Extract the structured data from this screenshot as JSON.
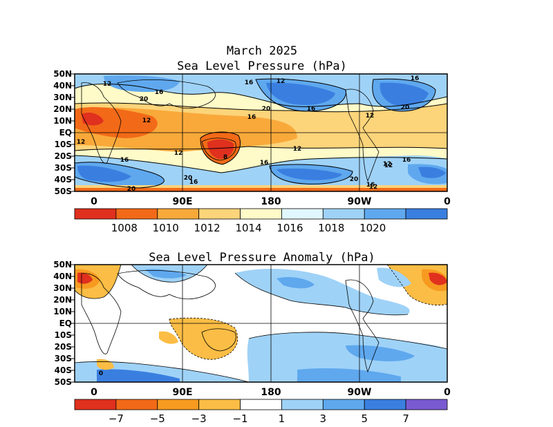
{
  "top_panel": {
    "title_line1": "March 2025",
    "title_line2": "Sea Level Pressure (hPa)",
    "colorbar": {
      "colors": [
        "#e0301e",
        "#f26a18",
        "#f9a93a",
        "#fcd47a",
        "#fffbc8",
        "#e0f7ff",
        "#9fd2f7",
        "#5fa8ee",
        "#3a7fe0"
      ],
      "labels": [
        "1008",
        "1010",
        "1012",
        "1014",
        "1016",
        "1018",
        "1020"
      ]
    },
    "contour_labels": [
      "12",
      "16",
      "20",
      "16",
      "12",
      "16",
      "20",
      "16",
      "20",
      "12",
      "12",
      "16",
      "12",
      "20",
      "12",
      "16",
      "12",
      "8",
      "12",
      "16",
      "20",
      "16",
      "20",
      "16",
      "12",
      "12",
      "16"
    ]
  },
  "bottom_panel": {
    "title": "Sea Level Pressure Anomaly (hPa)",
    "colorbar": {
      "colors": [
        "#e0301e",
        "#f26a18",
        "#f79a20",
        "#fbbd45",
        "#ffffff",
        "#9fd2f7",
        "#5fa8ee",
        "#3a7fe0",
        "#7a5ad0"
      ],
      "labels": [
        "−7",
        "−5",
        "−3",
        "−1",
        "1",
        "3",
        "5",
        "7"
      ]
    },
    "contour_labels": [
      "0"
    ]
  },
  "axes": {
    "lat_labels": [
      "50N",
      "40N",
      "30N",
      "20N",
      "10N",
      "EQ",
      "10S",
      "20S",
      "30S",
      "40S",
      "50S"
    ],
    "lon_labels": [
      "0",
      "90E",
      "180",
      "90W",
      "0"
    ]
  }
}
